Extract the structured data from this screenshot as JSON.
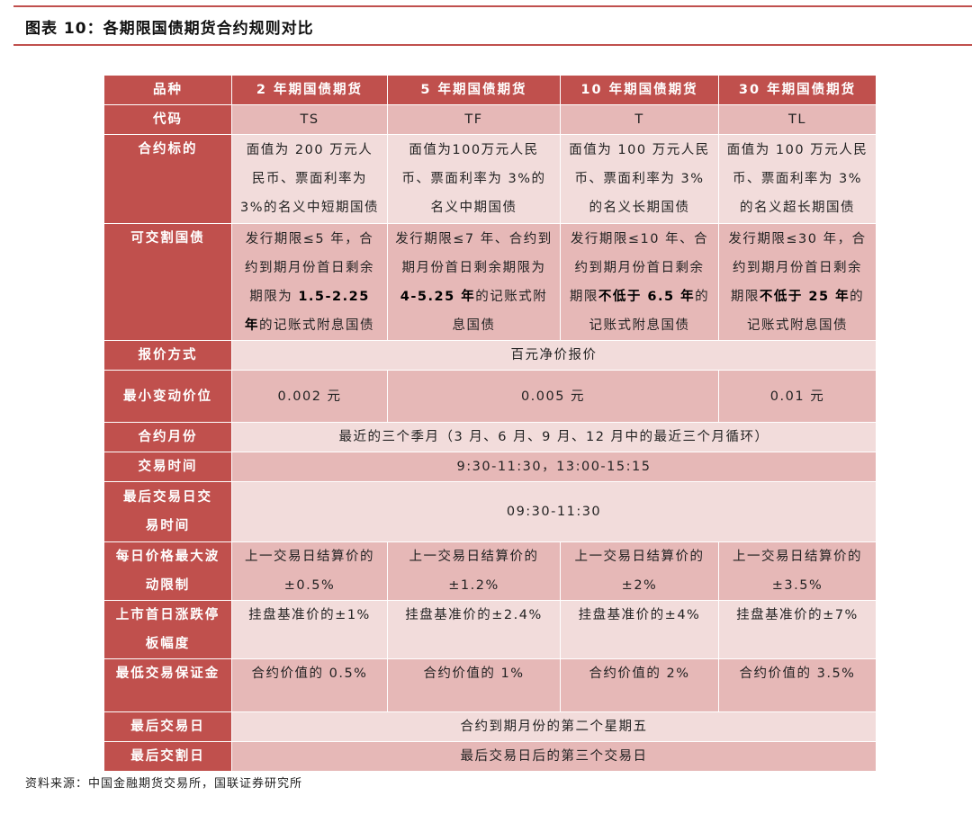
{
  "title": "图表 10：各期限国债期货合约规则对比",
  "header": [
    "品种",
    "2 年期国债期货",
    "5 年期国债期货",
    "10 年期国债期货",
    "30 年期国债期货"
  ],
  "rows": {
    "code": {
      "label": "代码",
      "values": [
        "TS",
        "TF",
        "T",
        "TL"
      ]
    },
    "underlying": {
      "label": "合约标的",
      "values": [
        "面值为 200 万元人民币、票面利率为 3%的名义中短期国债",
        "面值为100万元人民币、票面利率为 3%的名义中期国债",
        "面值为 100 万元人民币、票面利率为 3%的名义长期国债",
        "面值为 100 万元人民币、票面利率为 3%的名义超长期国债"
      ]
    },
    "deliverable": {
      "label": "可交割国债",
      "values": [
        [
          "发行期限≤5 年，合约到期月份首日剩余期限为 ",
          "1.5-2.25 年",
          "的记账式附息国债"
        ],
        [
          "发行期限≤7 年、合约到期月份首日剩余期限为 ",
          "4-5.25 年",
          "的记账式附息国债"
        ],
        [
          "发行期限≤10 年、合约到期月份首日剩余期限",
          "不低于 6.5 年",
          "的记账式附息国债"
        ],
        [
          "发行期限≤30 年，合约到期月份首日剩余期限",
          "不低于 25 年",
          "的记账式附息国债"
        ]
      ]
    },
    "quote": {
      "label": "报价方式",
      "value": "百元净价报价"
    },
    "tick": {
      "label": "最小变动价位",
      "values": [
        "0.002 元",
        "0.005 元",
        "0.01 元"
      ]
    },
    "months": {
      "label": "合约月份",
      "value": "最近的三个季月（3 月、6 月、9 月、12 月中的最近三个月循环）"
    },
    "hours": {
      "label": "交易时间",
      "value": "9:30-11:30，13:00-15:15"
    },
    "last_day_hours": {
      "label": "最后交易日交易时间",
      "value": "09:30-11:30"
    },
    "daily_limit": {
      "label": "每日价格最大波动限制",
      "values": [
        "上一交易日结算价的±0.5%",
        "上一交易日结算价的±1.2%",
        "上一交易日结算价的±2%",
        "上一交易日结算价的±3.5%"
      ]
    },
    "first_day_limit": {
      "label": "上市首日涨跌停板幅度",
      "values": [
        "挂盘基准价的±1%",
        "挂盘基准价的±2.4%",
        "挂盘基准价的±4%",
        "挂盘基准价的±7%"
      ]
    },
    "margin": {
      "label": "最低交易保证金",
      "values": [
        "合约价值的 0.5%",
        "合约价值的 1%",
        "合约价值的 2%",
        "合约价值的 3.5%"
      ]
    },
    "last_trade": {
      "label": "最后交易日",
      "value": "合约到期月份的第二个星期五"
    },
    "last_delivery": {
      "label": "最后交割日",
      "value": "最后交易日后的第三个交易日"
    }
  },
  "source": "资料来源：中国金融期货交易所，国联证券研究所",
  "colors": {
    "header": "#c0504d",
    "row_dark": "#e6b8b7",
    "row_light": "#f2dcdb"
  }
}
